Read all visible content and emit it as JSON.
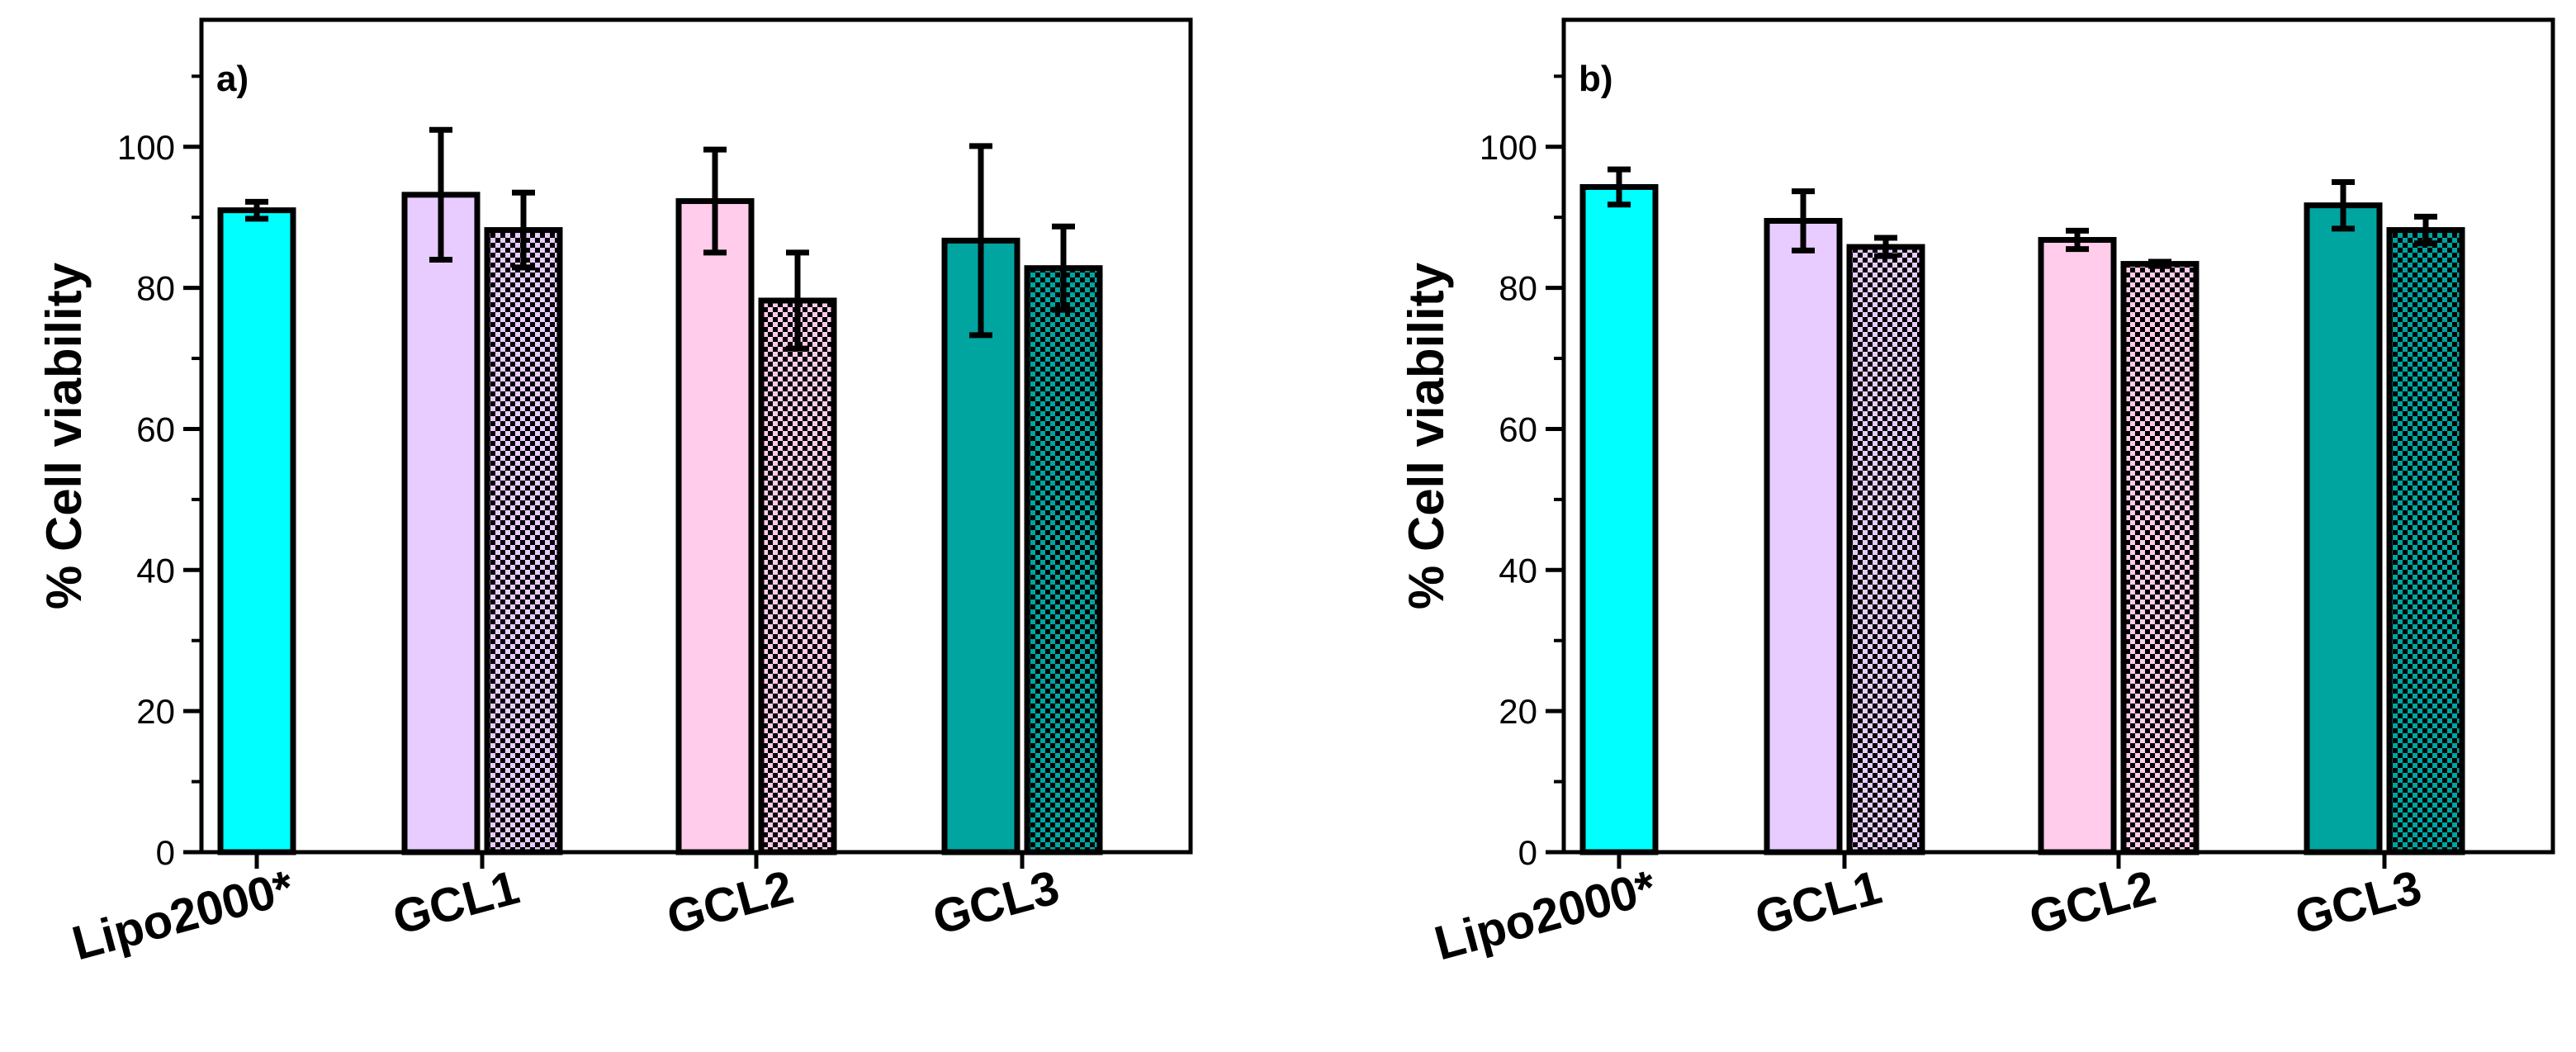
{
  "chart_data": [
    {
      "type": "bar",
      "panel_label": "a)",
      "ylabel": "% Cell viability",
      "ylim": [
        0,
        118
      ],
      "yticks": [
        0,
        20,
        40,
        60,
        80,
        100
      ],
      "categories": [
        "Lipo2000*",
        "GCL1",
        "GCL2",
        "GCL3"
      ],
      "bars": [
        {
          "category": "Lipo2000*",
          "value": 91.0,
          "error": 1.2,
          "color": "#00FFFF",
          "pattern": "solid"
        },
        {
          "category": "GCL1",
          "value": 93.2,
          "error": 9.2,
          "color": "#E8CCFF",
          "pattern": "solid"
        },
        {
          "category": "GCL1",
          "value": 88.2,
          "error": 5.3,
          "color": "#E8CCFF",
          "pattern": "checker"
        },
        {
          "category": "GCL2",
          "value": 92.3,
          "error": 7.3,
          "color": "#FFCCEB",
          "pattern": "solid"
        },
        {
          "category": "GCL2",
          "value": 78.2,
          "error": 6.8,
          "color": "#FFCCEB",
          "pattern": "checker"
        },
        {
          "category": "GCL3",
          "value": 86.7,
          "error": 13.4,
          "color": "#00A5A0",
          "pattern": "solid"
        },
        {
          "category": "GCL3",
          "value": 82.8,
          "error": 5.9,
          "color": "#00A5A0",
          "pattern": "checker"
        }
      ]
    },
    {
      "type": "bar",
      "panel_label": "b)",
      "ylabel": "% Cell viability",
      "ylim": [
        0,
        118
      ],
      "yticks": [
        0,
        20,
        40,
        60,
        80,
        100
      ],
      "categories": [
        "Lipo2000*",
        "GCL1",
        "GCL2",
        "GCL3"
      ],
      "bars": [
        {
          "category": "Lipo2000*",
          "value": 94.3,
          "error": 2.5,
          "color": "#00FFFF",
          "pattern": "solid"
        },
        {
          "category": "GCL1",
          "value": 89.5,
          "error": 4.2,
          "color": "#E8CCFF",
          "pattern": "solid"
        },
        {
          "category": "GCL1",
          "value": 85.8,
          "error": 1.3,
          "color": "#E8CCFF",
          "pattern": "checker"
        },
        {
          "category": "GCL2",
          "value": 86.8,
          "error": 1.3,
          "color": "#FFCCEB",
          "pattern": "solid"
        },
        {
          "category": "GCL2",
          "value": 83.4,
          "error": 0.3,
          "color": "#FFCCEB",
          "pattern": "checker"
        },
        {
          "category": "GCL3",
          "value": 91.7,
          "error": 3.3,
          "color": "#00A5A0",
          "pattern": "solid"
        },
        {
          "category": "GCL3",
          "value": 88.2,
          "error": 1.9,
          "color": "#00A5A0",
          "pattern": "checker"
        }
      ]
    }
  ]
}
